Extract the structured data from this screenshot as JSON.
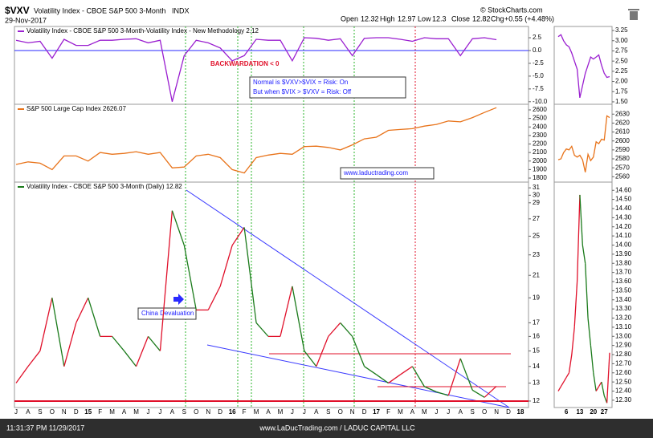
{
  "header": {
    "symbol": "$VXV",
    "name": "Volatility Index - CBOE S&P 500 3-Month",
    "exchange": "INDX",
    "date": "29-Nov-2017",
    "open_label": "Open",
    "open": 12.32,
    "high_label": "High",
    "high": 12.97,
    "low_label": "Low",
    "low": 12.3,
    "close_label": "Close",
    "close": 12.82,
    "chg_label": "Chg",
    "chg": "+0.55 (+4.48%)",
    "source": "© StockCharts.com"
  },
  "footer": {
    "time": "11:31:37 PM 11/29/2017",
    "credit": "www.LaDucTrading.com / LADUC CAPITAL LLC"
  },
  "chart_data": [
    {
      "type": "line",
      "title": "Volatility Index - CBOE S&P 500 3-Month-Volatility Index - New Methodology 2.12",
      "color": "#9a1fd0",
      "zero_line": true,
      "annotations": [
        "BACKWARDATION < 0",
        "Normal is $VXV>$VIX = Risk: On",
        "But when $VIX > $VXV = Risk: Off"
      ],
      "values": [
        2,
        1.5,
        1.8,
        -1.5,
        2.2,
        1,
        1,
        2,
        2,
        2.2,
        2.3,
        1.5,
        2,
        -10,
        -1,
        2,
        1.5,
        0.5,
        -2,
        -1,
        2.2,
        2,
        2,
        -2,
        2.5,
        2.4,
        2,
        2.3,
        -1,
        2.4,
        2.5,
        2.5,
        2.2,
        1.8,
        2.5,
        2.3,
        2.3,
        -1,
        2.3,
        2.5,
        2.12,
        null,
        null
      ],
      "ylim": [
        -10.5,
        4.7
      ],
      "yticks": [
        2.5,
        {
          "value": 0,
          "label": "0.0"
        },
        -2.5,
        {
          "value": -5,
          "label": "-5.0"
        },
        -7.5,
        {
          "value": -10,
          "label": "-10.0"
        }
      ]
    },
    {
      "type": "line",
      "title": "S&P 500 Large Cap Index 2626.07",
      "color": "#e8731a",
      "annotations": [
        "www.laductrading.com"
      ],
      "values": [
        1960,
        1990,
        1975,
        1900,
        2060,
        2060,
        2000,
        2100,
        2080,
        2090,
        2110,
        2080,
        2100,
        1920,
        1930,
        2060,
        2080,
        2040,
        1900,
        1860,
        2040,
        2070,
        2090,
        2080,
        2170,
        2175,
        2160,
        2130,
        2190,
        2260,
        2280,
        2360,
        2370,
        2380,
        2410,
        2430,
        2470,
        2460,
        2510,
        2570,
        2626.07,
        null,
        null
      ],
      "ylim": [
        1753,
        2666
      ],
      "yticks": [
        1800,
        1900,
        2000,
        2100,
        2200,
        2300,
        2400,
        2500,
        2600
      ]
    },
    {
      "type": "updown",
      "title": "Volatility Index - CBOE S&P 500 3-Month (Daily) 12.82",
      "up_color": "#e0102a",
      "down_color": "#1a7a1a",
      "log_scale": true,
      "annotations": [
        "China Devaluation"
      ],
      "categories": [
        "J",
        "A",
        "S",
        "O",
        "N",
        "D",
        "15",
        "F",
        "M",
        "A",
        "M",
        "J",
        "J",
        "A",
        "S",
        "O",
        "N",
        "D",
        "16",
        "F",
        "M",
        "A",
        "M",
        "J",
        "J",
        "A",
        "S",
        "O",
        "N",
        "D",
        "17",
        "F",
        "M",
        "A",
        "M",
        "J",
        "J",
        "A",
        "S",
        "O",
        "N",
        "D",
        "18"
      ],
      "values": [
        13,
        14,
        15,
        19,
        14,
        17,
        19,
        16,
        16,
        15,
        14,
        16,
        15,
        28,
        24,
        18,
        18,
        20,
        24,
        26,
        17,
        16,
        16,
        20,
        15,
        14,
        16,
        17,
        16,
        14,
        13.5,
        13,
        13.5,
        14,
        12.8,
        12.5,
        12.3,
        14.5,
        12.6,
        12.2,
        12.82,
        null,
        null
      ],
      "ylim": [
        11.66,
        31.8
      ],
      "yticks": [
        12,
        13,
        14,
        15,
        16,
        17,
        19,
        21,
        23,
        25,
        27,
        29,
        30,
        31
      ]
    },
    {
      "type": "line",
      "color": "#9a1fd0",
      "values": [
        3.1,
        3.15,
        3.0,
        2.9,
        2.85,
        2.7,
        2.5,
        2.3,
        1.6,
        1.9,
        2.2,
        2.4,
        2.6,
        2.55,
        2.6,
        2.65,
        2.4,
        2.2,
        2.1,
        2.12
      ],
      "ylim": [
        1.44,
        3.35
      ],
      "yticks": [
        3.25,
        {
          "value": 3,
          "label": "3.00"
        },
        2.75,
        {
          "value": 2.5,
          "label": "2.50"
        },
        2.25,
        {
          "value": 2,
          "label": "2.00"
        },
        1.75,
        {
          "value": 1.5,
          "label": "1.50"
        }
      ]
    },
    {
      "type": "line",
      "color": "#e8731a",
      "values": [
        2579,
        2580,
        2587,
        2591,
        2590,
        2594,
        2584,
        2582,
        2584,
        2579,
        2565,
        2585,
        2578,
        2582,
        2599,
        2597,
        2602,
        2601,
        2628,
        2626.07
      ],
      "ylim": [
        2554,
        2641
      ],
      "yticks": [
        2560,
        2570,
        2580,
        2590,
        2600,
        2610,
        2620,
        2630
      ]
    },
    {
      "type": "updown",
      "up_color": "#e0102a",
      "down_color": "#1a7a1a",
      "categories": [
        null,
        null,
        null,
        "6",
        null,
        null,
        null,
        null,
        "13",
        null,
        null,
        null,
        null,
        "20",
        null,
        null,
        null,
        "27",
        null,
        null
      ],
      "values": [
        12.4,
        12.45,
        12.5,
        12.55,
        12.6,
        12.8,
        13.1,
        13.6,
        14.55,
        14.0,
        13.8,
        13.2,
        12.9,
        12.6,
        12.4,
        12.45,
        12.5,
        12.35,
        12.27,
        12.82
      ],
      "ylim": [
        12.22,
        14.69
      ],
      "yticks": [
        {
          "value": 12.3,
          "label": "12.30"
        },
        {
          "value": 12.4,
          "label": "12.40"
        },
        {
          "value": 12.5,
          "label": "12.50"
        },
        {
          "value": 12.6,
          "label": "12.60"
        },
        {
          "value": 12.7,
          "label": "12.70"
        },
        {
          "value": 12.8,
          "label": "12.80"
        },
        {
          "value": 12.9,
          "label": "12.90"
        },
        {
          "value": 13,
          "label": "13.00"
        },
        {
          "value": 13.1,
          "label": "13.10"
        },
        {
          "value": 13.2,
          "label": "13.20"
        },
        {
          "value": 13.3,
          "label": "13.30"
        },
        {
          "value": 13.4,
          "label": "13.40"
        },
        {
          "value": 13.5,
          "label": "13.50"
        },
        {
          "value": 13.6,
          "label": "13.60"
        },
        {
          "value": 13.7,
          "label": "13.70"
        },
        {
          "value": 13.8,
          "label": "13.80"
        },
        {
          "value": 13.9,
          "label": "13.90"
        },
        {
          "value": 14,
          "label": "14.00"
        },
        {
          "value": 14.1,
          "label": "14.10"
        },
        {
          "value": 14.2,
          "label": "14.20"
        },
        {
          "value": 14.3,
          "label": "14.30"
        },
        {
          "value": 14.4,
          "label": "14.40"
        },
        {
          "value": 14.5,
          "label": "14.50"
        },
        {
          "value": 14.6,
          "label": "14.60"
        }
      ]
    }
  ]
}
